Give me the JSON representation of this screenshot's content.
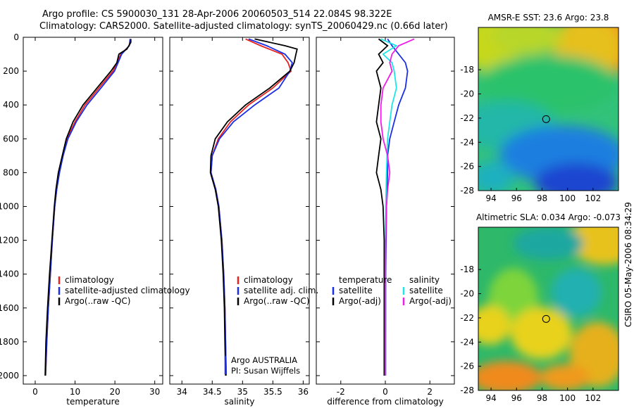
{
  "header": {
    "line1": "Argo profile: CS 5900030_131 28-Apr-2006 20060503_514 22.084S 98.322E",
    "line2": "Climatology: CARS2000. Satellite-adjusted climatology: synTS_20060429.nc (0.66d later)"
  },
  "signature": "CSIRO 05-May-2006 08:34:29",
  "colors": {
    "red": "#e8231f",
    "blue": "#1a2ee8",
    "black": "#000000",
    "cyan": "#1ee6e6",
    "magenta": "#ee1ee8"
  },
  "chart_data": [
    {
      "type": "line",
      "xlabel": "temperature",
      "xlim": [
        -3,
        32
      ],
      "ylim": [
        2050,
        0
      ],
      "xticks": [
        0,
        10,
        20,
        30
      ],
      "yticks": [
        0,
        200,
        400,
        600,
        800,
        1000,
        1200,
        1400,
        1600,
        1800,
        2000
      ],
      "legend": [
        "climatology",
        "satellite-adjusted climatology",
        "Argo(..raw -QC)"
      ],
      "series": [
        {
          "name": "climatology",
          "color": "red",
          "points": [
            [
              23.8,
              10
            ],
            [
              23.6,
              50
            ],
            [
              21.5,
              100
            ],
            [
              20.5,
              150
            ],
            [
              19.5,
              200
            ],
            [
              16,
              300
            ],
            [
              12.5,
              400
            ],
            [
              10,
              500
            ],
            [
              8,
              600
            ],
            [
              7,
              700
            ],
            [
              6,
              800
            ],
            [
              5.4,
              900
            ],
            [
              4.9,
              1000
            ],
            [
              4.3,
              1200
            ],
            [
              3.8,
              1400
            ],
            [
              3.3,
              1600
            ],
            [
              2.9,
              1800
            ],
            [
              2.6,
              2000
            ]
          ]
        },
        {
          "name": "satellite-adjusted climatology",
          "color": "blue",
          "points": [
            [
              23.9,
              10
            ],
            [
              23.6,
              50
            ],
            [
              21.7,
              100
            ],
            [
              20.8,
              150
            ],
            [
              19.9,
              200
            ],
            [
              16.5,
              300
            ],
            [
              13,
              400
            ],
            [
              10.3,
              500
            ],
            [
              8.2,
              600
            ],
            [
              7,
              700
            ],
            [
              6.1,
              800
            ],
            [
              5.4,
              900
            ],
            [
              4.9,
              1000
            ],
            [
              4.3,
              1200
            ],
            [
              3.8,
              1400
            ],
            [
              3.3,
              1600
            ],
            [
              2.9,
              1800
            ],
            [
              2.6,
              2000
            ]
          ]
        },
        {
          "name": "Argo(..raw -QC)",
          "color": "black",
          "points": [
            [
              24,
              10
            ],
            [
              24,
              30
            ],
            [
              23.5,
              50
            ],
            [
              23,
              70
            ],
            [
              21,
              100
            ],
            [
              20.5,
              150
            ],
            [
              19,
              200
            ],
            [
              15.5,
              300
            ],
            [
              12,
              400
            ],
            [
              9.5,
              500
            ],
            [
              7.8,
              600
            ],
            [
              6.8,
              700
            ],
            [
              5.8,
              800
            ],
            [
              5.2,
              900
            ],
            [
              4.8,
              1000
            ],
            [
              4.2,
              1200
            ],
            [
              3.6,
              1400
            ],
            [
              3.1,
              1600
            ],
            [
              2.7,
              1800
            ],
            [
              2.5,
              2000
            ]
          ]
        }
      ]
    },
    {
      "type": "line",
      "xlabel": "salinity",
      "xlim": [
        33.8,
        36.1
      ],
      "ylim": [
        2050,
        0
      ],
      "xticks": [
        34,
        34.5,
        35,
        35.5,
        36
      ],
      "legend": [
        "climatology",
        "satellite adj. clim.",
        "Argo(..raw -QC)"
      ],
      "annotations": [
        "Argo AUSTRALIA",
        "PI: Susan Wijffels"
      ],
      "series": [
        {
          "name": "climatology",
          "color": "red",
          "points": [
            [
              35.05,
              10
            ],
            [
              35.3,
              50
            ],
            [
              35.65,
              100
            ],
            [
              35.75,
              150
            ],
            [
              35.8,
              200
            ],
            [
              35.5,
              300
            ],
            [
              35.1,
              400
            ],
            [
              34.8,
              500
            ],
            [
              34.6,
              600
            ],
            [
              34.5,
              700
            ],
            [
              34.48,
              800
            ],
            [
              34.56,
              900
            ],
            [
              34.61,
              1000
            ],
            [
              34.66,
              1200
            ],
            [
              34.69,
              1400
            ],
            [
              34.71,
              1600
            ],
            [
              34.72,
              1800
            ],
            [
              34.73,
              2000
            ]
          ]
        },
        {
          "name": "satellite adj. clim.",
          "color": "blue",
          "points": [
            [
              35.1,
              10
            ],
            [
              35.4,
              50
            ],
            [
              35.7,
              100
            ],
            [
              35.82,
              150
            ],
            [
              35.78,
              200
            ],
            [
              35.6,
              300
            ],
            [
              35.2,
              400
            ],
            [
              34.85,
              500
            ],
            [
              34.62,
              600
            ],
            [
              34.5,
              700
            ],
            [
              34.48,
              800
            ],
            [
              34.56,
              900
            ],
            [
              34.61,
              1000
            ],
            [
              34.66,
              1200
            ],
            [
              34.69,
              1400
            ],
            [
              34.71,
              1600
            ],
            [
              34.72,
              1800
            ],
            [
              34.73,
              2000
            ]
          ]
        },
        {
          "name": "Argo(..raw -QC)",
          "color": "black",
          "points": [
            [
              35.2,
              10
            ],
            [
              35.7,
              50
            ],
            [
              35.9,
              70
            ],
            [
              35.88,
              100
            ],
            [
              35.85,
              150
            ],
            [
              35.78,
              200
            ],
            [
              35.45,
              300
            ],
            [
              35.05,
              400
            ],
            [
              34.75,
              500
            ],
            [
              34.55,
              600
            ],
            [
              34.48,
              700
            ],
            [
              34.47,
              800
            ],
            [
              34.55,
              900
            ],
            [
              34.6,
              1000
            ],
            [
              34.65,
              1200
            ],
            [
              34.68,
              1400
            ],
            [
              34.7,
              1600
            ],
            [
              34.71,
              1800
            ],
            [
              34.72,
              2000
            ]
          ]
        }
      ]
    },
    {
      "type": "line",
      "xlabel": "difference from climatology",
      "xlim": [
        -3.1,
        3.1
      ],
      "ylim": [
        2050,
        0
      ],
      "xticks": [
        -2,
        0,
        2
      ],
      "legend": [
        "temperature",
        "satellite",
        "Argo(-adj)",
        "salinity",
        "satellite",
        "Argo(-adj)"
      ],
      "series": [
        {
          "name": "temperature satellite",
          "color": "blue",
          "points": [
            [
              0.1,
              10
            ],
            [
              0.3,
              50
            ],
            [
              0.6,
              100
            ],
            [
              0.9,
              150
            ],
            [
              1,
              200
            ],
            [
              0.9,
              300
            ],
            [
              0.6,
              400
            ],
            [
              0.4,
              500
            ],
            [
              0.2,
              600
            ],
            [
              0.1,
              700
            ],
            [
              0.1,
              800
            ],
            [
              0.05,
              1000
            ],
            [
              0.02,
              1400
            ],
            [
              0.01,
              2000
            ]
          ]
        },
        {
          "name": "temperature Argo(-adj)",
          "color": "black",
          "points": [
            [
              -0.3,
              10
            ],
            [
              0.1,
              50
            ],
            [
              -0.3,
              100
            ],
            [
              -0.1,
              150
            ],
            [
              -0.4,
              200
            ],
            [
              -0.2,
              300
            ],
            [
              -0.3,
              400
            ],
            [
              -0.4,
              500
            ],
            [
              -0.2,
              600
            ],
            [
              -0.3,
              700
            ],
            [
              -0.4,
              800
            ],
            [
              -0.2,
              900
            ],
            [
              -0.1,
              1000
            ],
            [
              -0.05,
              1200
            ],
            [
              -0.05,
              1400
            ],
            [
              -0.05,
              1600
            ],
            [
              -0.05,
              1800
            ],
            [
              -0.05,
              2000
            ]
          ]
        },
        {
          "name": "salinity satellite",
          "color": "cyan",
          "points": [
            [
              -0.2,
              10
            ],
            [
              0.5,
              50
            ],
            [
              -0.1,
              100
            ],
            [
              0.3,
              150
            ],
            [
              0.4,
              200
            ],
            [
              0.5,
              300
            ],
            [
              0.3,
              400
            ],
            [
              0.2,
              500
            ],
            [
              0.1,
              600
            ],
            [
              0.05,
              800
            ],
            [
              0.02,
              1000
            ],
            [
              0.01,
              1400
            ],
            [
              0.01,
              2000
            ]
          ]
        },
        {
          "name": "salinity Argo(-adj)",
          "color": "magenta",
          "points": [
            [
              1.3,
              10
            ],
            [
              0.6,
              50
            ],
            [
              0.3,
              100
            ],
            [
              0.2,
              150
            ],
            [
              0.3,
              200
            ],
            [
              -0.1,
              300
            ],
            [
              -0.2,
              400
            ],
            [
              -0.2,
              500
            ],
            [
              -0.1,
              600
            ],
            [
              0.1,
              700
            ],
            [
              0.2,
              800
            ],
            [
              0.1,
              900
            ],
            [
              0.05,
              1000
            ],
            [
              0.02,
              1200
            ],
            [
              0.01,
              1400
            ],
            [
              0.01,
              2000
            ]
          ]
        }
      ]
    },
    {
      "type": "heatmap",
      "title": "AMSR-E SST: 23.6  Argo: 23.8",
      "xlim": [
        93,
        104
      ],
      "ylim": [
        -28,
        -14.5
      ],
      "xticks": [
        94,
        96,
        98,
        100,
        102
      ],
      "yticks": [
        -28,
        -26,
        -24,
        -22,
        -20,
        -18
      ],
      "marker": {
        "lon": 98.322,
        "lat": -22.084
      }
    },
    {
      "type": "heatmap",
      "title": "Altimetric SLA: 0.034  Argo: -0.073",
      "xlim": [
        93,
        104
      ],
      "ylim": [
        -28,
        -14.5
      ],
      "xticks": [
        94,
        96,
        98,
        100,
        102
      ],
      "yticks": [
        -28,
        -26,
        -24,
        -22,
        -20,
        -18
      ],
      "marker": {
        "lon": 98.322,
        "lat": -22.084
      }
    }
  ]
}
